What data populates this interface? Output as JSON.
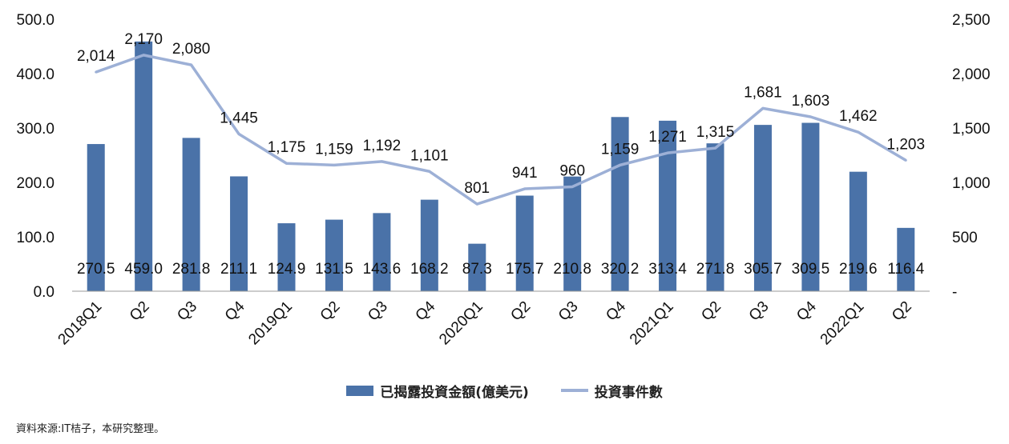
{
  "chart_data": {
    "type": "bar",
    "categories": [
      "2018Q1",
      "Q2",
      "Q3",
      "Q4",
      "2019Q1",
      "Q2",
      "Q3",
      "Q4",
      "2020Q1",
      "Q2",
      "Q3",
      "Q4",
      "2021Q1",
      "Q2",
      "Q3",
      "Q4",
      "2022Q1",
      "Q2"
    ],
    "series": [
      {
        "name": "已揭露投資金額(億美元)",
        "type": "bar",
        "axis": "left",
        "color": "#4a72a8",
        "values": [
          270.5,
          459.0,
          281.8,
          211.1,
          124.9,
          131.5,
          143.6,
          168.2,
          87.3,
          175.7,
          210.8,
          320.2,
          313.4,
          271.8,
          305.7,
          309.5,
          219.6,
          116.4
        ],
        "labels": [
          "270.5",
          "459.0",
          "281.8",
          "211.1",
          "124.9",
          "131.5",
          "143.6",
          "168.2",
          "87.3",
          "175.7",
          "210.8",
          "320.2",
          "313.4",
          "271.8",
          "305.7",
          "309.5",
          "219.6",
          "116.4"
        ]
      },
      {
        "name": "投資事件數",
        "type": "line",
        "axis": "right",
        "color": "#9db0d6",
        "values": [
          2014,
          2170,
          2080,
          1445,
          1175,
          1159,
          1192,
          1101,
          801,
          941,
          960,
          1159,
          1271,
          1315,
          1681,
          1603,
          1462,
          1203
        ],
        "labels": [
          "2,014",
          "2,170",
          "2,080",
          "1,445",
          "1,175",
          "1,159",
          "1,192",
          "1,101",
          "801",
          "941",
          "960",
          "1,159",
          "1,271",
          "1,315",
          "1,681",
          "1,603",
          "1,462",
          "1,203"
        ]
      }
    ],
    "ylim_left": [
      0,
      500
    ],
    "ylim_right": [
      0,
      2500
    ],
    "yticks_left": [
      "0.0",
      "100.0",
      "200.0",
      "300.0",
      "400.0",
      "500.0"
    ],
    "yticks_right": [
      "-",
      "500",
      "1,000",
      "1,500",
      "2,000",
      "2,500"
    ],
    "grid": false,
    "legend_position": "bottom"
  },
  "legend": {
    "bar_label": "已揭露投資金額(億美元)",
    "line_label": "投資事件數"
  },
  "source_note": "資料來源:IT桔子，本研究整理。"
}
